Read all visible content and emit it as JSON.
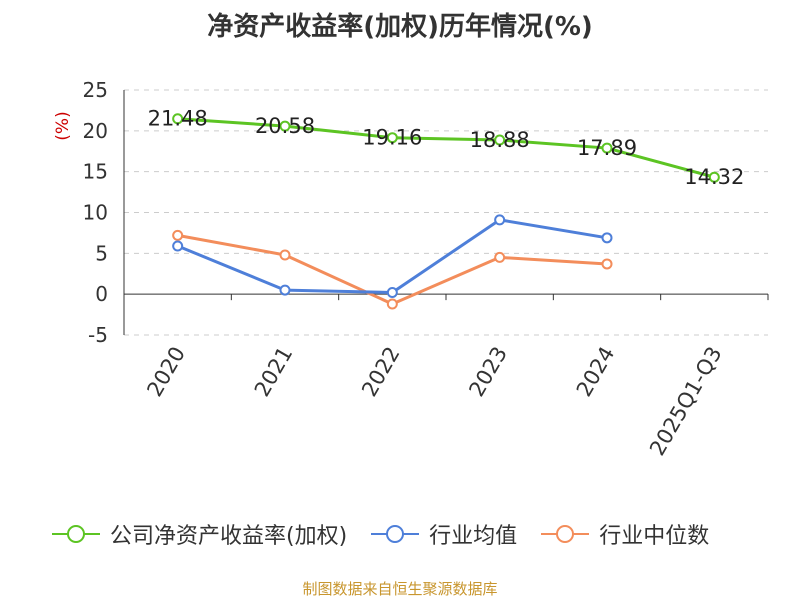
{
  "title": "净资产收益率(加权)历年情况(%)",
  "footer": "制图数据来自恒生聚源数据库",
  "chart_data": {
    "type": "line",
    "ylabel": "(%)",
    "ylim": [
      -5,
      25
    ],
    "yticks": [
      -5,
      0,
      5,
      10,
      15,
      20,
      25
    ],
    "grid": true,
    "legend_position": "bottom",
    "categories": [
      "2020",
      "2021",
      "2022",
      "2023",
      "2024",
      "2025Q1-Q3"
    ],
    "series": [
      {
        "name": "公司净资产收益率(加权)",
        "color": "#5cc423",
        "values": [
          21.48,
          20.58,
          19.16,
          18.88,
          17.89,
          14.32
        ],
        "labels": [
          "21.48",
          "20.58",
          "19.16",
          "18.88",
          "17.89",
          "14.32"
        ]
      },
      {
        "name": "行业均值",
        "color": "#4e7fd9",
        "values": [
          5.9,
          0.5,
          0.2,
          9.1,
          6.9,
          null
        ]
      },
      {
        "name": "行业中位数",
        "color": "#f38d5b",
        "values": [
          7.2,
          4.8,
          -1.2,
          4.5,
          3.7,
          null
        ]
      }
    ]
  }
}
